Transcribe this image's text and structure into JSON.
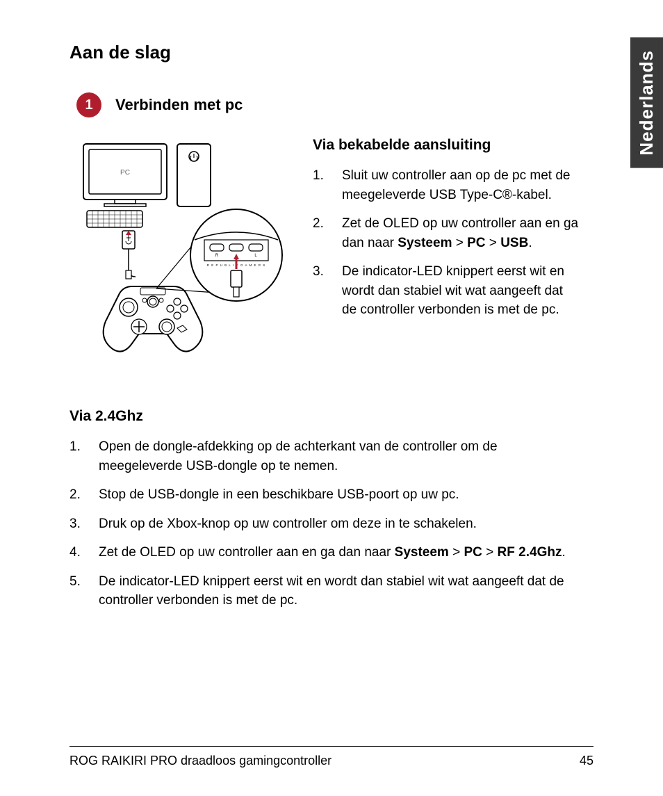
{
  "language_tab": "Nederlands",
  "main_title": "Aan de slag",
  "step": {
    "number": "1",
    "title": "Verbinden met pc",
    "badge_color": "#b01e2e"
  },
  "diagram": {
    "pc_label": "PC",
    "port_labels": {
      "left": "R",
      "right": "L"
    },
    "port_text": "REPUBLIC GAMERS",
    "arrow_color": "#b01e2e",
    "stroke_color": "#000000",
    "accent_color": "#b01e2e"
  },
  "wired": {
    "title": "Via bekabelde aansluiting",
    "items": [
      {
        "text": "Sluit uw controller aan op de pc met de meegeleverde USB Type-C®-kabel."
      },
      {
        "prefix": "Zet de OLED op uw controller aan en ga dan naar ",
        "bold": "Systeem > PC > USB",
        "suffix": "."
      },
      {
        "text": "De indicator-LED knippert eerst wit en wordt dan stabiel wit wat aangeeft dat de controller verbonden is met de pc."
      }
    ]
  },
  "rf": {
    "title": "Via 2.4Ghz",
    "items": [
      {
        "text": "Open de dongle-afdekking op de achterkant van de controller om de meegeleverde USB-dongle op te nemen."
      },
      {
        "text": "Stop de USB-dongle in een beschikbare USB-poort op uw pc."
      },
      {
        "text": "Druk op de Xbox-knop op uw controller om deze in te schakelen."
      },
      {
        "prefix": "Zet de OLED op uw controller aan en ga dan naar ",
        "bold": "Systeem > PC > RF 2.4Ghz",
        "suffix": "."
      },
      {
        "text": "De indicator-LED knippert eerst wit en wordt dan stabiel wit wat aangeeft dat de controller verbonden is met de pc."
      }
    ]
  },
  "footer": {
    "product": "ROG RAIKIRI PRO draadloos gamingcontroller",
    "page": "45"
  }
}
